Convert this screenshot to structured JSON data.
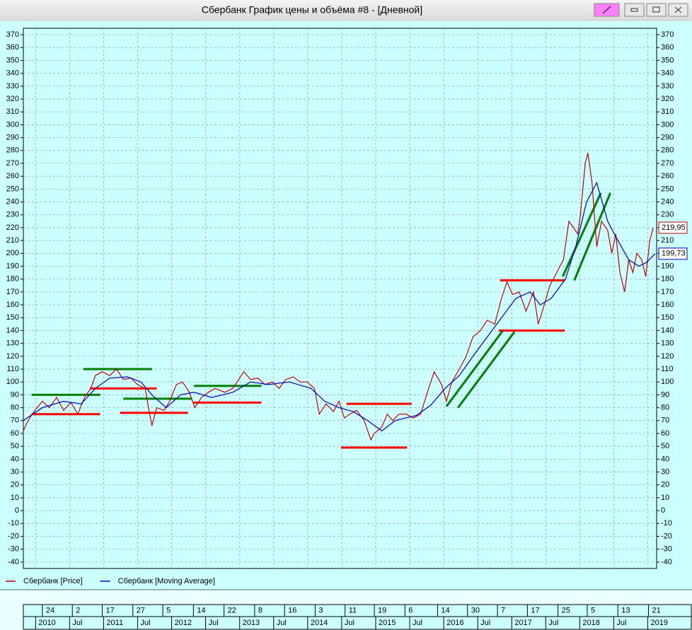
{
  "chart_data": {
    "type": "line",
    "title": "Сбербанк График цены и объёма #8 - [Дневной]",
    "xlim": [
      2009.82,
      2019.13
    ],
    "ylim": [
      -45,
      375
    ],
    "yticks": [
      -40,
      -30,
      -20,
      -10,
      0,
      10,
      20,
      30,
      40,
      50,
      60,
      70,
      80,
      90,
      100,
      110,
      120,
      130,
      140,
      150,
      160,
      170,
      180,
      190,
      200,
      210,
      220,
      230,
      240,
      250,
      260,
      270,
      280,
      290,
      300,
      310,
      320,
      330,
      340,
      350,
      360,
      370
    ],
    "xticks": [
      2010,
      {
        "value": 2010.5,
        "label": "Jul"
      },
      2011,
      {
        "value": 2011.5,
        "label": "Jul"
      },
      2012,
      {
        "value": 2012.5,
        "label": "Jul"
      },
      2013,
      {
        "value": 2013.5,
        "label": "Jul"
      },
      2014,
      {
        "value": 2014.5,
        "label": "Jul"
      },
      2015,
      {
        "value": 2015.5,
        "label": "Jul"
      },
      2016,
      {
        "value": 2016.5,
        "label": "Jul"
      },
      2017,
      {
        "value": 2017.5,
        "label": "Jul"
      },
      2018,
      {
        "value": 2018.5,
        "label": "Jul"
      },
      2019
    ],
    "x_day_ticks": [
      {
        "value": 2010.1,
        "label": "24"
      },
      {
        "value": 2010.54,
        "label": "2"
      },
      {
        "value": 2010.98,
        "label": "17"
      },
      {
        "value": 2011.43,
        "label": "27"
      },
      {
        "value": 2011.87,
        "label": "5"
      },
      {
        "value": 2012.32,
        "label": "14"
      },
      {
        "value": 2012.77,
        "label": "22"
      },
      {
        "value": 2013.22,
        "label": "8"
      },
      {
        "value": 2013.66,
        "label": "16"
      },
      {
        "value": 2014.11,
        "label": "3"
      },
      {
        "value": 2014.55,
        "label": "11"
      },
      {
        "value": 2014.98,
        "label": "19"
      },
      {
        "value": 2015.43,
        "label": "6"
      },
      {
        "value": 2015.91,
        "label": "14"
      },
      {
        "value": 2016.35,
        "label": "30"
      },
      {
        "value": 2016.79,
        "label": "7"
      },
      {
        "value": 2017.23,
        "label": "17"
      },
      {
        "value": 2017.68,
        "label": "25"
      },
      {
        "value": 2018.11,
        "label": "5"
      },
      {
        "value": 2018.56,
        "label": "13"
      },
      {
        "value": 2019.01,
        "label": "21"
      }
    ],
    "grid": true,
    "series": [
      {
        "name": "Сбербанк [Price]",
        "color": "#c00000",
        "x": [
          2009.82,
          2009.89,
          2009.99,
          2010.1,
          2010.2,
          2010.31,
          2010.41,
          2010.52,
          2010.62,
          2010.72,
          2010.81,
          2010.88,
          2010.98,
          2011.09,
          2011.19,
          2011.29,
          2011.4,
          2011.5,
          2011.61,
          2011.66,
          2011.71,
          2011.78,
          2011.89,
          2011.97,
          2012.07,
          2012.16,
          2012.26,
          2012.34,
          2012.44,
          2012.54,
          2012.64,
          2012.78,
          2012.9,
          2013.06,
          2013.16,
          2013.27,
          2013.37,
          2013.48,
          2013.58,
          2013.68,
          2013.79,
          2013.89,
          2013.99,
          2014.1,
          2014.17,
          2014.27,
          2014.38,
          2014.46,
          2014.54,
          2014.62,
          2014.72,
          2014.83,
          2014.93,
          2014.98,
          2015.09,
          2015.17,
          2015.25,
          2015.34,
          2015.45,
          2015.55,
          2015.66,
          2015.76,
          2015.86,
          2015.97,
          2016.04,
          2016.12,
          2016.23,
          2016.33,
          2016.43,
          2016.54,
          2016.64,
          2016.75,
          2016.85,
          2016.93,
          2017.01,
          2017.11,
          2017.21,
          2017.32,
          2017.39,
          2017.45,
          2017.56,
          2017.66,
          2017.76,
          2017.84,
          2017.91,
          2017.97,
          2018.01,
          2018.08,
          2018.12,
          2018.18,
          2018.25,
          2018.32,
          2018.41,
          2018.47,
          2018.53,
          2018.59,
          2018.66,
          2018.72,
          2018.78,
          2018.84,
          2018.91,
          2018.97,
          2019.03,
          2019.08
        ],
        "values": [
          62,
          70,
          78,
          85,
          80,
          88,
          78,
          84,
          75,
          88,
          95,
          105,
          108,
          105,
          110,
          102,
          103,
          98,
          95,
          80,
          66,
          80,
          78,
          85,
          98,
          100,
          92,
          80,
          88,
          92,
          95,
          92,
          95,
          108,
          102,
          103,
          98,
          100,
          95,
          102,
          104,
          100,
          100,
          95,
          75,
          83,
          77,
          85,
          72,
          75,
          78,
          70,
          55,
          60,
          65,
          75,
          70,
          75,
          75,
          72,
          75,
          92,
          108,
          98,
          85,
          100,
          110,
          120,
          135,
          140,
          148,
          145,
          165,
          178,
          168,
          170,
          155,
          170,
          145,
          155,
          175,
          185,
          195,
          225,
          220,
          215,
          230,
          270,
          278,
          255,
          205,
          225,
          218,
          200,
          215,
          185,
          170,
          195,
          185,
          200,
          195,
          182,
          210,
          219.95
        ],
        "value_labels": [
          null,
          null,
          null,
          null,
          null,
          null,
          null,
          null,
          null,
          null,
          null,
          null,
          null,
          null,
          null,
          null,
          null,
          null,
          null,
          null,
          null,
          null,
          null,
          null,
          null,
          null,
          null,
          null,
          null,
          null,
          null,
          null,
          null,
          null,
          null,
          null,
          null,
          null,
          null,
          null,
          null,
          null,
          null,
          null,
          null,
          null,
          null,
          null,
          null,
          null,
          null,
          null,
          null,
          null,
          null,
          null,
          null,
          null,
          null,
          null,
          null,
          null,
          null,
          null,
          null,
          null,
          null,
          null,
          null,
          null,
          null,
          null,
          null,
          null,
          null,
          null,
          null,
          null,
          null,
          null,
          null,
          null,
          null,
          null,
          null,
          null,
          null,
          null,
          null,
          null,
          null,
          null,
          null,
          null,
          null,
          null,
          null,
          null,
          null,
          null,
          null,
          null,
          null,
          "219,95"
        ]
      },
      {
        "name": "Сбербанк [Moving Average]",
        "color": "#0000c0",
        "x": [
          2009.82,
          2010.1,
          2010.41,
          2010.67,
          2010.88,
          2011.09,
          2011.35,
          2011.55,
          2011.71,
          2011.92,
          2012.13,
          2012.33,
          2012.59,
          2012.9,
          2013.16,
          2013.42,
          2013.73,
          2014.05,
          2014.25,
          2014.46,
          2014.67,
          2014.88,
          2015.09,
          2015.29,
          2015.6,
          2015.81,
          2016.02,
          2016.23,
          2016.43,
          2016.64,
          2016.85,
          2017.06,
          2017.27,
          2017.42,
          2017.58,
          2017.79,
          2017.94,
          2018.1,
          2018.25,
          2018.41,
          2018.56,
          2018.72,
          2018.87,
          2018.98,
          2019.11
        ],
        "values": [
          70,
          80,
          85,
          83,
          95,
          103,
          104,
          100,
          90,
          80,
          90,
          92,
          88,
          92,
          100,
          98,
          100,
          95,
          85,
          80,
          77,
          70,
          62,
          70,
          74,
          82,
          95,
          105,
          120,
          135,
          150,
          165,
          170,
          160,
          165,
          180,
          205,
          240,
          255,
          225,
          210,
          195,
          190,
          193,
          199.73
        ],
        "value_labels": [
          null,
          null,
          null,
          null,
          null,
          null,
          null,
          null,
          null,
          null,
          null,
          null,
          null,
          null,
          null,
          null,
          null,
          null,
          null,
          null,
          null,
          null,
          null,
          null,
          null,
          null,
          null,
          null,
          null,
          null,
          null,
          null,
          null,
          null,
          null,
          null,
          null,
          null,
          null,
          null,
          null,
          null,
          null,
          null,
          "199,73"
        ]
      }
    ],
    "lines": [
      {
        "color": "#ff0000",
        "x": [
          2009.94,
          2010.95
        ],
        "values": [
          75,
          75
        ]
      },
      {
        "color": "#ff0000",
        "x": [
          2010.8,
          2011.78
        ],
        "values": [
          95,
          95
        ]
      },
      {
        "color": "#ff0000",
        "x": [
          2011.24,
          2012.24
        ],
        "values": [
          76,
          76
        ]
      },
      {
        "color": "#ff0000",
        "x": [
          2012.32,
          2013.32
        ],
        "values": [
          84,
          84
        ]
      },
      {
        "color": "#ff0000",
        "x": [
          2014.57,
          2015.53
        ],
        "values": [
          83,
          83
        ]
      },
      {
        "color": "#ff0000",
        "x": [
          2014.49,
          2015.46
        ],
        "values": [
          49,
          49
        ]
      },
      {
        "color": "#ff0000",
        "x": [
          2016.83,
          2017.78
        ],
        "values": [
          179,
          179
        ]
      },
      {
        "color": "#ff0000",
        "x": [
          2016.81,
          2017.78
        ],
        "values": [
          140,
          140
        ]
      },
      {
        "color": "#008000",
        "x": [
          2009.94,
          2010.95
        ],
        "values": [
          90,
          90
        ]
      },
      {
        "color": "#008000",
        "x": [
          2010.7,
          2011.71
        ],
        "values": [
          110,
          110
        ]
      },
      {
        "color": "#008000",
        "x": [
          2011.29,
          2012.3
        ],
        "values": [
          87,
          87
        ]
      },
      {
        "color": "#008000",
        "x": [
          2012.33,
          2013.32
        ],
        "values": [
          97,
          97
        ]
      },
      {
        "color": "#008000",
        "x": [
          2016.04,
          2016.87
        ],
        "values": [
          81,
          140
        ]
      },
      {
        "color": "#008000",
        "x": [
          2016.21,
          2017.04
        ],
        "values": [
          80,
          139
        ]
      },
      {
        "color": "#008000",
        "x": [
          2017.75,
          2018.31
        ],
        "values": [
          182,
          247
        ]
      },
      {
        "color": "#008000",
        "x": [
          2017.92,
          2018.45
        ],
        "values": [
          179,
          247
        ]
      }
    ]
  }
}
